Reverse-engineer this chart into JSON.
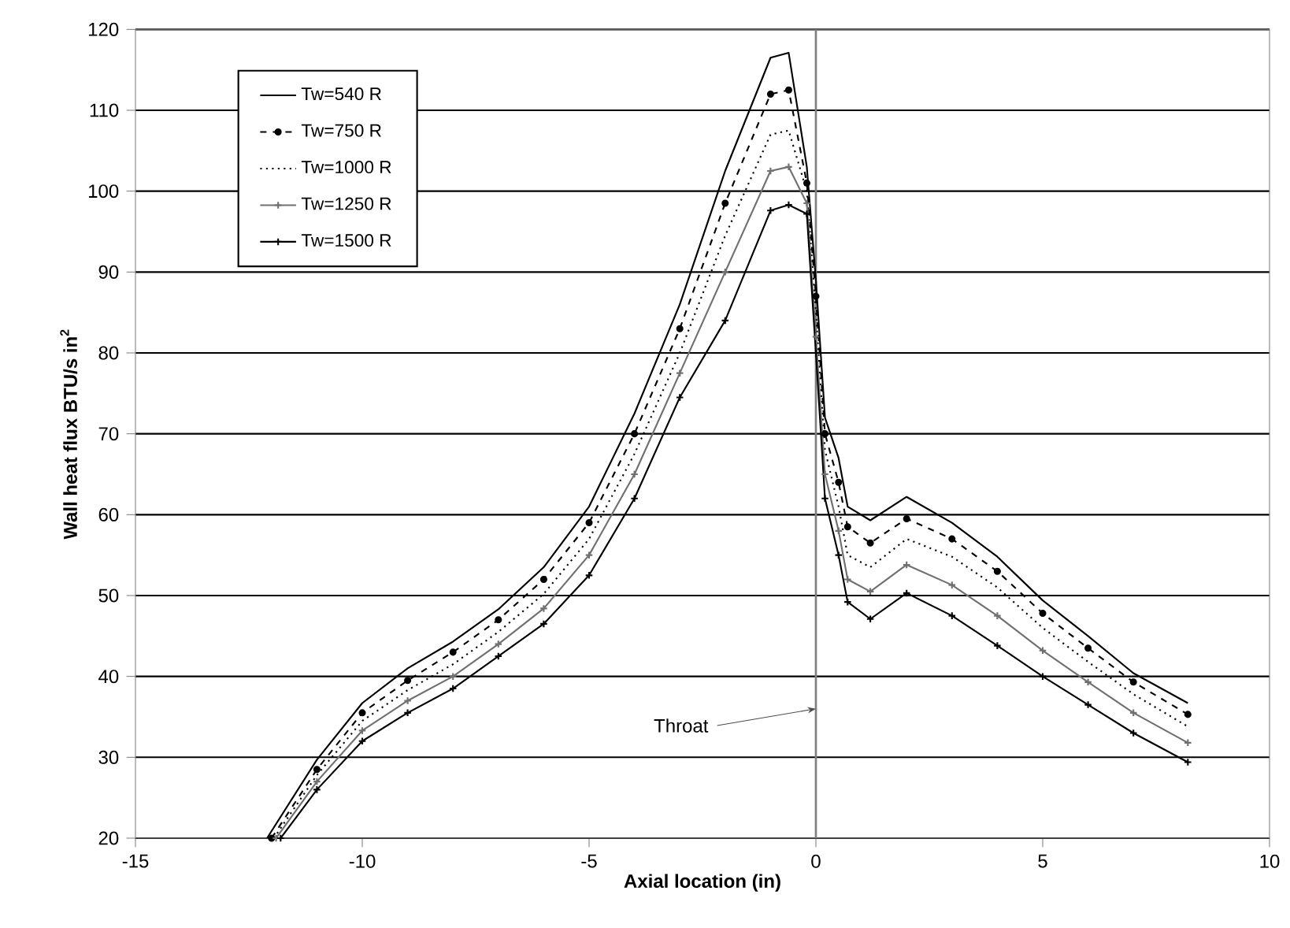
{
  "chart_data": {
    "type": "line",
    "xlabel": "Axial location (in)",
    "ylabel": "Wall heat flux BTU/s in$^{2}$",
    "xlim": [
      -15,
      10
    ],
    "xticks": [
      -15,
      -10,
      -5,
      0,
      5,
      10
    ],
    "ylim": [
      20,
      120
    ],
    "yticks": [
      20,
      30,
      40,
      50,
      60,
      70,
      80,
      90,
      100,
      110,
      120
    ],
    "grid": "y",
    "legend": "top left",
    "ref_lines": [
      {
        "axis": "x",
        "value": 0,
        "color": "#808080"
      }
    ],
    "annotations": [
      {
        "text": "Throat",
        "x": 0,
        "y": 36
      }
    ],
    "series": [
      {
        "name": "Tw=540 R",
        "color": "#000000",
        "line_style": "solid",
        "marker": "none",
        "x": [
          -12.1,
          -11,
          -10,
          -9,
          -8,
          -7,
          -6,
          -5,
          -4,
          -3,
          -2,
          -1,
          -0.6,
          -0.2,
          0,
          0.2,
          0.5,
          0.7,
          1.2,
          2,
          3,
          4,
          5,
          6,
          7,
          8.2
        ],
        "values": [
          20,
          29.7,
          36.7,
          41,
          44.3,
          48.3,
          53.5,
          61,
          72.5,
          86,
          102.5,
          116.5,
          117.1,
          103,
          89,
          72,
          67,
          61,
          59.3,
          62.2,
          59,
          54.8,
          49.4,
          45,
          40.4,
          36.7
        ]
      },
      {
        "name": "Tw=750 R",
        "color": "#000000",
        "line_style": "dashed",
        "marker": "circle",
        "x": [
          -12,
          -11,
          -10,
          -9,
          -8,
          -7,
          -6,
          -5,
          -4,
          -3,
          -2,
          -1,
          -0.6,
          -0.2,
          0,
          0.2,
          0.5,
          0.7,
          1.2,
          2,
          3,
          4,
          5,
          6,
          7,
          8.2
        ],
        "values": [
          20,
          28.5,
          35.5,
          39.5,
          43,
          47,
          52,
          59,
          70,
          83,
          98.5,
          112,
          112.5,
          101,
          87,
          70,
          64,
          58.5,
          56.5,
          59.5,
          57,
          53,
          47.8,
          43.5,
          39.3,
          35.3
        ]
      },
      {
        "name": "Tw=1000 R",
        "color": "#000000",
        "line_style": "dotted",
        "marker": "none",
        "x": [
          -11.95,
          -11,
          -10,
          -9,
          -8,
          -7,
          -6,
          -5,
          -4,
          -3,
          -2,
          -1,
          -0.6,
          -0.2,
          0,
          0.2,
          0.5,
          0.7,
          1.2,
          2,
          3,
          4,
          5,
          6,
          7,
          8.2
        ],
        "values": [
          20,
          27.8,
          34.5,
          38.3,
          41.5,
          45.5,
          50.2,
          57,
          67.5,
          80,
          94.5,
          107,
          107.5,
          100,
          85,
          68,
          61,
          55,
          53.5,
          57,
          54.8,
          51,
          46,
          41.8,
          37.8,
          33.8
        ]
      },
      {
        "name": "Tw=1250 R",
        "color": "#707070",
        "line_style": "solid",
        "marker": "cross",
        "x": [
          -11.9,
          -11,
          -10,
          -9,
          -8,
          -7,
          -6,
          -5,
          -4,
          -3,
          -2,
          -1,
          -0.6,
          -0.2,
          0,
          0.2,
          0.5,
          0.7,
          1.2,
          2,
          3,
          4,
          5,
          6,
          7,
          8.2
        ],
        "values": [
          20,
          27,
          33.3,
          37,
          40,
          44,
          48.4,
          55,
          65,
          77.5,
          90,
          102.5,
          103,
          98.5,
          82,
          65,
          58,
          52,
          50.5,
          53.8,
          51.3,
          47.5,
          43.2,
          39.3,
          35.5,
          31.8
        ]
      },
      {
        "name": "Tw=1500 R",
        "color": "#000000",
        "line_style": "solid",
        "marker": "cross",
        "x": [
          -11.8,
          -11,
          -10,
          -9,
          -8,
          -7,
          -6,
          -5,
          -4,
          -3,
          -2,
          -1,
          -0.6,
          -0.2,
          0,
          0.2,
          0.5,
          0.7,
          1.2,
          2,
          3,
          4,
          5,
          6,
          7,
          8.2
        ],
        "values": [
          20,
          26,
          32,
          35.5,
          38.5,
          42.5,
          46.5,
          52.5,
          62,
          74.5,
          84,
          97.6,
          98.3,
          97.2,
          80,
          62,
          55,
          49.2,
          47.1,
          50.3,
          47.5,
          43.8,
          40,
          36.5,
          33,
          29.4
        ]
      }
    ]
  }
}
